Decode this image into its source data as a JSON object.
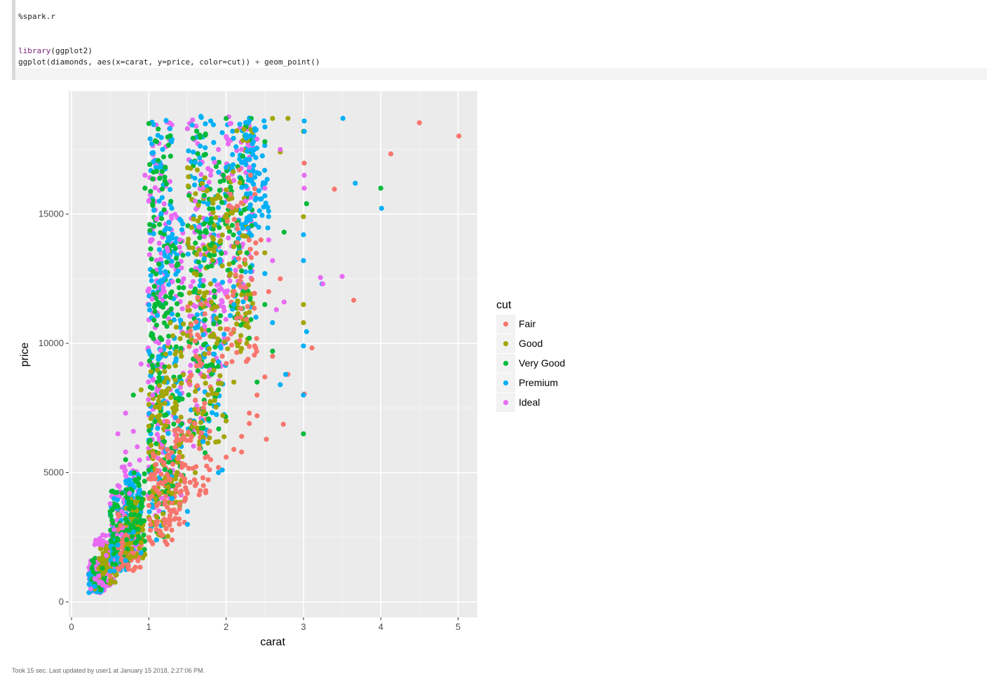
{
  "cell": {
    "magic": "%spark.r",
    "line1_kw": "library",
    "line1_rest": "(ggplot2)",
    "line2_a": "ggplot(diamonds, aes(x=carat, y=price, color=cut)) ",
    "line2_plus": "+",
    "line2_b": " geom_point()"
  },
  "footer": {
    "status": "Took 15 sec. Last updated by user1 at January 15 2018, 2:27:06 PM."
  },
  "chart_data": {
    "type": "scatter",
    "title": "",
    "xlabel": "carat",
    "ylabel": "price",
    "xlim": [
      0,
      5.2
    ],
    "ylim": [
      0,
      19000
    ],
    "x_ticks": [
      "0",
      "1",
      "2",
      "3",
      "4",
      "5"
    ],
    "y_ticks": [
      "0",
      "5000",
      "10000",
      "15000"
    ],
    "grid": true,
    "legend_title": "cut",
    "legend_position": "right",
    "series": [
      {
        "name": "Fair",
        "color": "#F8766D",
        "points": [
          [
            4.5,
            18531
          ],
          [
            5.01,
            18018
          ],
          [
            4.13,
            17329
          ],
          [
            3.4,
            15964
          ],
          [
            3.65,
            11668
          ],
          [
            3.11,
            9823
          ],
          [
            3.01,
            16970
          ],
          [
            3.01,
            8040
          ],
          [
            2.74,
            6870
          ],
          [
            2.52,
            6290
          ],
          [
            2.8,
            8800
          ],
          [
            2.5,
            8700
          ],
          [
            2.4,
            7200
          ],
          [
            2.3,
            6900
          ],
          [
            2.2,
            6400
          ],
          [
            2.1,
            5900
          ],
          [
            2.0,
            5600
          ],
          [
            1.9,
            5200
          ],
          [
            1.8,
            5500
          ],
          [
            1.7,
            4800
          ],
          [
            1.6,
            4500
          ],
          [
            1.5,
            4200
          ],
          [
            1.4,
            3800
          ],
          [
            1.3,
            3500
          ],
          [
            1.2,
            3200
          ],
          [
            1.1,
            2800
          ],
          [
            1.0,
            2500
          ],
          [
            0.9,
            2200
          ],
          [
            0.8,
            1900
          ],
          [
            0.7,
            1500
          ],
          [
            0.6,
            1300
          ],
          [
            0.5,
            1000
          ],
          [
            2.3,
            7300
          ],
          [
            2.2,
            5800
          ],
          [
            2.4,
            8000
          ],
          [
            2.6,
            9500
          ],
          [
            2.7,
            12500
          ],
          [
            2.55,
            12000
          ],
          [
            2.45,
            14000
          ],
          [
            1.95,
            9500
          ],
          [
            1.3,
            2400
          ]
        ]
      },
      {
        "name": "Good",
        "color": "#A3A500",
        "points": [
          [
            2.8,
            18700
          ],
          [
            3.0,
            18200
          ],
          [
            3.0,
            14900
          ],
          [
            3.0,
            11500
          ],
          [
            3.0,
            10800
          ],
          [
            2.6,
            18700
          ],
          [
            2.7,
            17400
          ],
          [
            2.5,
            13500
          ],
          [
            2.3,
            11200
          ],
          [
            2.1,
            8500
          ],
          [
            1.9,
            6200
          ],
          [
            1.6,
            5000
          ],
          [
            1.3,
            4200
          ],
          [
            1.1,
            3300
          ],
          [
            0.9,
            2300
          ],
          [
            0.7,
            1900
          ],
          [
            0.5,
            1200
          ],
          [
            0.3,
            500
          ],
          [
            2.0,
            7000
          ],
          [
            2.2,
            9800
          ],
          [
            1.8,
            12300
          ],
          [
            1.5,
            10300
          ],
          [
            1.2,
            8500
          ],
          [
            1.0,
            6800
          ],
          [
            0.9,
            8200
          ]
        ]
      },
      {
        "name": "Very Good",
        "color": "#00BA38",
        "points": [
          [
            3.0,
            6500
          ],
          [
            4.0,
            16000
          ],
          [
            3.04,
            15400
          ],
          [
            2.75,
            14300
          ],
          [
            2.6,
            9700
          ],
          [
            2.5,
            11500
          ],
          [
            2.4,
            8500
          ],
          [
            2.3,
            10200
          ],
          [
            2.2,
            12800
          ],
          [
            2.0,
            15700
          ],
          [
            1.8,
            13800
          ],
          [
            1.6,
            12100
          ],
          [
            1.4,
            8700
          ],
          [
            1.2,
            6200
          ],
          [
            1.0,
            5100
          ],
          [
            0.9,
            3800
          ],
          [
            0.8,
            2900
          ],
          [
            0.6,
            2400
          ],
          [
            0.4,
            1300
          ],
          [
            0.3,
            700
          ],
          [
            1.0,
            18500
          ],
          [
            1.1,
            17800
          ],
          [
            0.95,
            16000
          ],
          [
            0.8,
            8000
          ],
          [
            0.7,
            5500
          ],
          [
            0.5,
            3500
          ],
          [
            2.0,
            18700
          ],
          [
            2.5,
            17800
          ],
          [
            1.5,
            18300
          ],
          [
            1.9,
            8200
          ]
        ]
      },
      {
        "name": "Premium",
        "color": "#00B0F6",
        "points": [
          [
            3.51,
            18701
          ],
          [
            3.67,
            16193
          ],
          [
            4.01,
            15223
          ],
          [
            3.24,
            12300
          ],
          [
            3.04,
            10453
          ],
          [
            3.01,
            18600
          ],
          [
            3.01,
            18200
          ],
          [
            3.0,
            14200
          ],
          [
            3.0,
            13200
          ],
          [
            3.0,
            9900
          ],
          [
            3.0,
            8000
          ],
          [
            2.77,
            8800
          ],
          [
            2.7,
            8400
          ],
          [
            2.6,
            10800
          ],
          [
            2.5,
            12700
          ],
          [
            2.4,
            16600
          ],
          [
            2.3,
            18600
          ],
          [
            2.2,
            14600
          ],
          [
            2.1,
            11500
          ],
          [
            1.9,
            5000
          ],
          [
            1.7,
            6200
          ],
          [
            1.5,
            3500
          ],
          [
            1.3,
            4000
          ],
          [
            1.1,
            2400
          ],
          [
            0.9,
            1900
          ],
          [
            0.7,
            1600
          ],
          [
            0.5,
            1200
          ],
          [
            0.3,
            600
          ],
          [
            0.25,
            420
          ],
          [
            1.0,
            9700
          ],
          [
            1.2,
            12500
          ],
          [
            1.4,
            14800
          ],
          [
            1.6,
            17000
          ],
          [
            1.8,
            18600
          ],
          [
            2.0,
            16800
          ],
          [
            0.8,
            2700
          ],
          [
            0.6,
            2200
          ],
          [
            1.95,
            5100
          ],
          [
            1.5,
            3000
          ]
        ]
      },
      {
        "name": "Ideal",
        "color": "#E76BF3",
        "points": [
          [
            3.5,
            12587
          ],
          [
            3.22,
            12545
          ],
          [
            3.25,
            12300
          ],
          [
            3.01,
            16500
          ],
          [
            3.01,
            16000
          ],
          [
            2.75,
            11600
          ],
          [
            2.65,
            11300
          ],
          [
            2.6,
            13200
          ],
          [
            2.4,
            17900
          ],
          [
            2.3,
            16800
          ],
          [
            2.2,
            17500
          ],
          [
            2.1,
            16300
          ],
          [
            2.0,
            18000
          ],
          [
            1.9,
            17500
          ],
          [
            1.8,
            16500
          ],
          [
            1.7,
            16000
          ],
          [
            1.6,
            15500
          ],
          [
            1.5,
            18300
          ],
          [
            1.4,
            14000
          ],
          [
            1.3,
            13000
          ],
          [
            1.2,
            12000
          ],
          [
            1.1,
            14800
          ],
          [
            1.0,
            15500
          ],
          [
            0.95,
            16500
          ],
          [
            0.9,
            9200
          ],
          [
            0.8,
            6600
          ],
          [
            0.7,
            5800
          ],
          [
            0.6,
            4500
          ],
          [
            0.5,
            3800
          ],
          [
            0.4,
            2200
          ],
          [
            0.3,
            900
          ],
          [
            0.25,
            500
          ],
          [
            0.65,
            3500
          ],
          [
            0.55,
            2800
          ],
          [
            0.45,
            1800
          ],
          [
            0.35,
            1000
          ],
          [
            0.75,
            4200
          ],
          [
            0.85,
            6000
          ],
          [
            1.05,
            8000
          ],
          [
            1.25,
            10000
          ],
          [
            1.45,
            12500
          ],
          [
            1.65,
            14500
          ],
          [
            1.85,
            17000
          ],
          [
            2.05,
            18500
          ],
          [
            2.25,
            15500
          ],
          [
            2.5,
            16000
          ],
          [
            2.55,
            14000
          ],
          [
            2.7,
            17500
          ],
          [
            0.6,
            6500
          ],
          [
            0.7,
            7300
          ]
        ]
      }
    ],
    "bands": [
      {
        "name": "Ideal",
        "color": "#E76BF3",
        "x0": 0.22,
        "x1": 0.42,
        "y0": 350,
        "y1": 1600
      },
      {
        "name": "Premium",
        "color": "#00B0F6",
        "x0": 0.22,
        "x1": 0.4,
        "y0": 350,
        "y1": 1200
      },
      {
        "name": "Very Good",
        "color": "#00BA38",
        "x0": 0.25,
        "x1": 0.45,
        "y0": 400,
        "y1": 1800
      },
      {
        "name": "Ideal",
        "color": "#E76BF3",
        "x0": 0.3,
        "x1": 0.55,
        "y0": 600,
        "y1": 2600
      },
      {
        "name": "Good",
        "color": "#A3A500",
        "x0": 0.35,
        "x1": 0.6,
        "y0": 700,
        "y1": 2200
      },
      {
        "name": "Ideal",
        "color": "#E76BF3",
        "x0": 0.5,
        "x1": 0.75,
        "y0": 1300,
        "y1": 4500
      },
      {
        "name": "Premium",
        "color": "#00B0F6",
        "x0": 0.5,
        "x1": 0.72,
        "y0": 1200,
        "y1": 4000
      },
      {
        "name": "Very Good",
        "color": "#00BA38",
        "x0": 0.5,
        "x1": 0.75,
        "y0": 1400,
        "y1": 4300
      },
      {
        "name": "Ideal",
        "color": "#E76BF3",
        "x0": 0.65,
        "x1": 0.9,
        "y0": 1800,
        "y1": 5500
      },
      {
        "name": "Fair",
        "color": "#F8766D",
        "x0": 0.6,
        "x1": 0.9,
        "y0": 1200,
        "y1": 3500
      },
      {
        "name": "Premium",
        "color": "#00B0F6",
        "x0": 0.7,
        "x1": 0.9,
        "y0": 1900,
        "y1": 5000
      },
      {
        "name": "Good",
        "color": "#A3A500",
        "x0": 0.7,
        "x1": 0.95,
        "y0": 1700,
        "y1": 4000
      },
      {
        "name": "Very Good",
        "color": "#00BA38",
        "x0": 0.7,
        "x1": 0.95,
        "y0": 2000,
        "y1": 5000
      },
      {
        "name": "Ideal",
        "color": "#E76BF3",
        "x0": 0.98,
        "x1": 1.15,
        "y0": 2800,
        "y1": 12500
      },
      {
        "name": "Premium",
        "color": "#00B0F6",
        "x0": 1.0,
        "x1": 1.2,
        "y0": 2700,
        "y1": 13000
      },
      {
        "name": "Very Good",
        "color": "#00BA38",
        "x0": 1.0,
        "x1": 1.2,
        "y0": 2500,
        "y1": 12000
      },
      {
        "name": "Good",
        "color": "#A3A500",
        "x0": 1.0,
        "x1": 1.25,
        "y0": 2400,
        "y1": 9000
      },
      {
        "name": "Fair",
        "color": "#F8766D",
        "x0": 1.0,
        "x1": 1.3,
        "y0": 2200,
        "y1": 6000
      },
      {
        "name": "Ideal",
        "color": "#E76BF3",
        "x0": 1.0,
        "x1": 1.3,
        "y0": 11000,
        "y1": 18700
      },
      {
        "name": "Premium",
        "color": "#00B0F6",
        "x0": 1.0,
        "x1": 1.3,
        "y0": 12000,
        "y1": 18700
      },
      {
        "name": "Very Good",
        "color": "#00BA38",
        "x0": 1.0,
        "x1": 1.3,
        "y0": 10000,
        "y1": 18500
      },
      {
        "name": "Ideal",
        "color": "#E76BF3",
        "x0": 1.15,
        "x1": 1.45,
        "y0": 4000,
        "y1": 15000
      },
      {
        "name": "Premium",
        "color": "#00B0F6",
        "x0": 1.2,
        "x1": 1.45,
        "y0": 4200,
        "y1": 15000
      },
      {
        "name": "Very Good",
        "color": "#00BA38",
        "x0": 1.2,
        "x1": 1.45,
        "y0": 3800,
        "y1": 14000
      },
      {
        "name": "Good",
        "color": "#A3A500",
        "x0": 1.2,
        "x1": 1.45,
        "y0": 3500,
        "y1": 11000
      },
      {
        "name": "Fair",
        "color": "#F8766D",
        "x0": 1.2,
        "x1": 1.5,
        "y0": 3000,
        "y1": 7000
      },
      {
        "name": "Ideal",
        "color": "#E76BF3",
        "x0": 1.5,
        "x1": 1.75,
        "y0": 6000,
        "y1": 18800
      },
      {
        "name": "Premium",
        "color": "#00B0F6",
        "x0": 1.5,
        "x1": 1.75,
        "y0": 6200,
        "y1": 18800
      },
      {
        "name": "Very Good",
        "color": "#00BA38",
        "x0": 1.5,
        "x1": 1.75,
        "y0": 5500,
        "y1": 18500
      },
      {
        "name": "Good",
        "color": "#A3A500",
        "x0": 1.5,
        "x1": 1.75,
        "y0": 5000,
        "y1": 17000
      },
      {
        "name": "Fair",
        "color": "#F8766D",
        "x0": 1.5,
        "x1": 1.8,
        "y0": 4000,
        "y1": 12000
      },
      {
        "name": "Ideal",
        "color": "#E76BF3",
        "x0": 1.7,
        "x1": 2.0,
        "y0": 7500,
        "y1": 17000
      },
      {
        "name": "Premium",
        "color": "#00B0F6",
        "x0": 1.7,
        "x1": 2.0,
        "y0": 7000,
        "y1": 18500
      },
      {
        "name": "Very Good",
        "color": "#00BA38",
        "x0": 1.7,
        "x1": 2.0,
        "y0": 6500,
        "y1": 17500
      },
      {
        "name": "Good",
        "color": "#A3A500",
        "x0": 1.7,
        "x1": 2.0,
        "y0": 6000,
        "y1": 16000
      },
      {
        "name": "Ideal",
        "color": "#E76BF3",
        "x0": 2.0,
        "x1": 2.35,
        "y0": 12000,
        "y1": 18800
      },
      {
        "name": "Premium",
        "color": "#00B0F6",
        "x0": 2.0,
        "x1": 2.4,
        "y0": 11000,
        "y1": 18800
      },
      {
        "name": "Very Good",
        "color": "#00BA38",
        "x0": 2.0,
        "x1": 2.35,
        "y0": 10500,
        "y1": 18700
      },
      {
        "name": "Good",
        "color": "#A3A500",
        "x0": 2.0,
        "x1": 2.35,
        "y0": 9500,
        "y1": 18500
      },
      {
        "name": "Fair",
        "color": "#F8766D",
        "x0": 2.0,
        "x1": 2.4,
        "y0": 9000,
        "y1": 17000
      },
      {
        "name": "Premium",
        "color": "#00B0F6",
        "x0": 2.2,
        "x1": 2.55,
        "y0": 14000,
        "y1": 18800
      }
    ]
  }
}
